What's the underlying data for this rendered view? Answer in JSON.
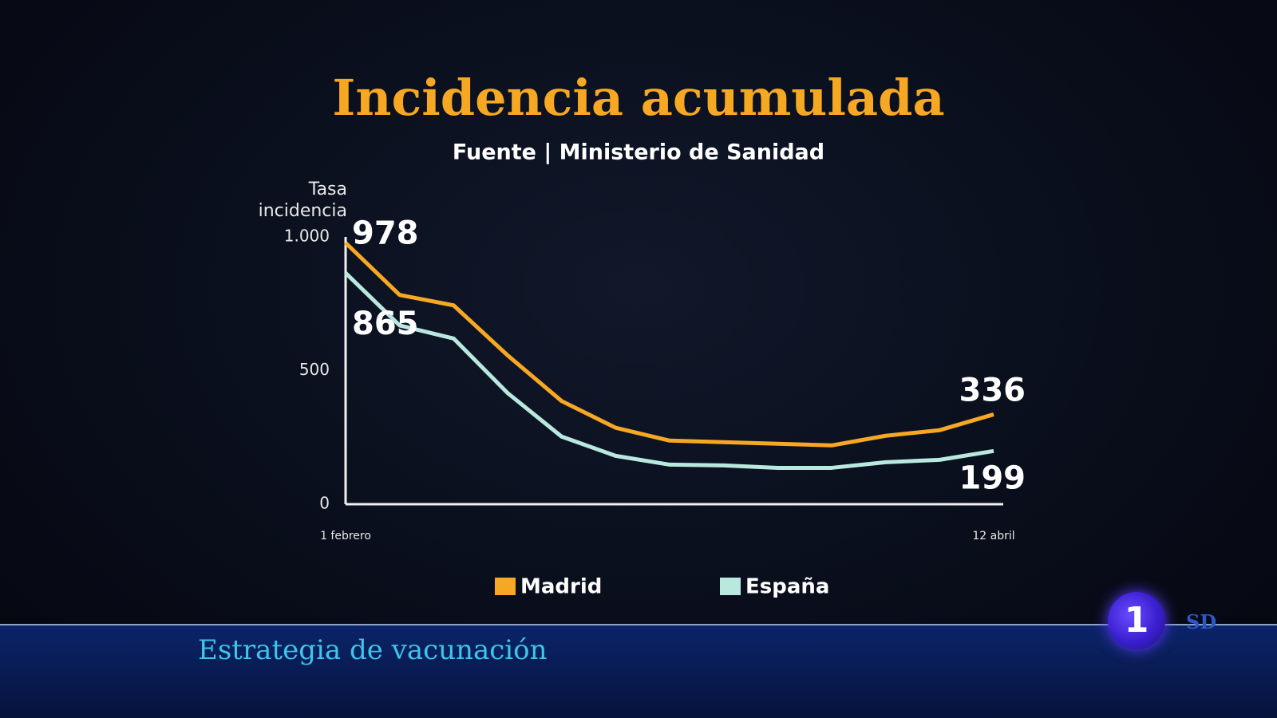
{
  "chart_data": {
    "type": "line",
    "title": "Incidencia acumulada",
    "subtitle": "Fuente | Ministerio de Sanidad",
    "y_label": "Tasa incidencia",
    "categories": [
      "1 febrero",
      null,
      null,
      null,
      null,
      null,
      null,
      null,
      null,
      null,
      null,
      null,
      "12 abril"
    ],
    "series": [
      {
        "name": "Madrid",
        "color": "#f7a823",
        "values": [
          978,
          783,
          744,
          557,
          386,
          286,
          238,
          232,
          226,
          220,
          256,
          277,
          336
        ]
      },
      {
        "name": "España",
        "color": "#b9e8df",
        "values": [
          865,
          669,
          620,
          416,
          253,
          181,
          148,
          145,
          136,
          136,
          157,
          166,
          199
        ]
      }
    ],
    "ylim": [
      0,
      1000
    ],
    "yticks": [
      0,
      500,
      {
        "value": 1000,
        "label": "1.000"
      }
    ],
    "grid": false,
    "legend": "bottom"
  },
  "broadcast": {
    "lower_third": "Estrategia de vacunación",
    "channel": "1",
    "quality": "SD"
  }
}
